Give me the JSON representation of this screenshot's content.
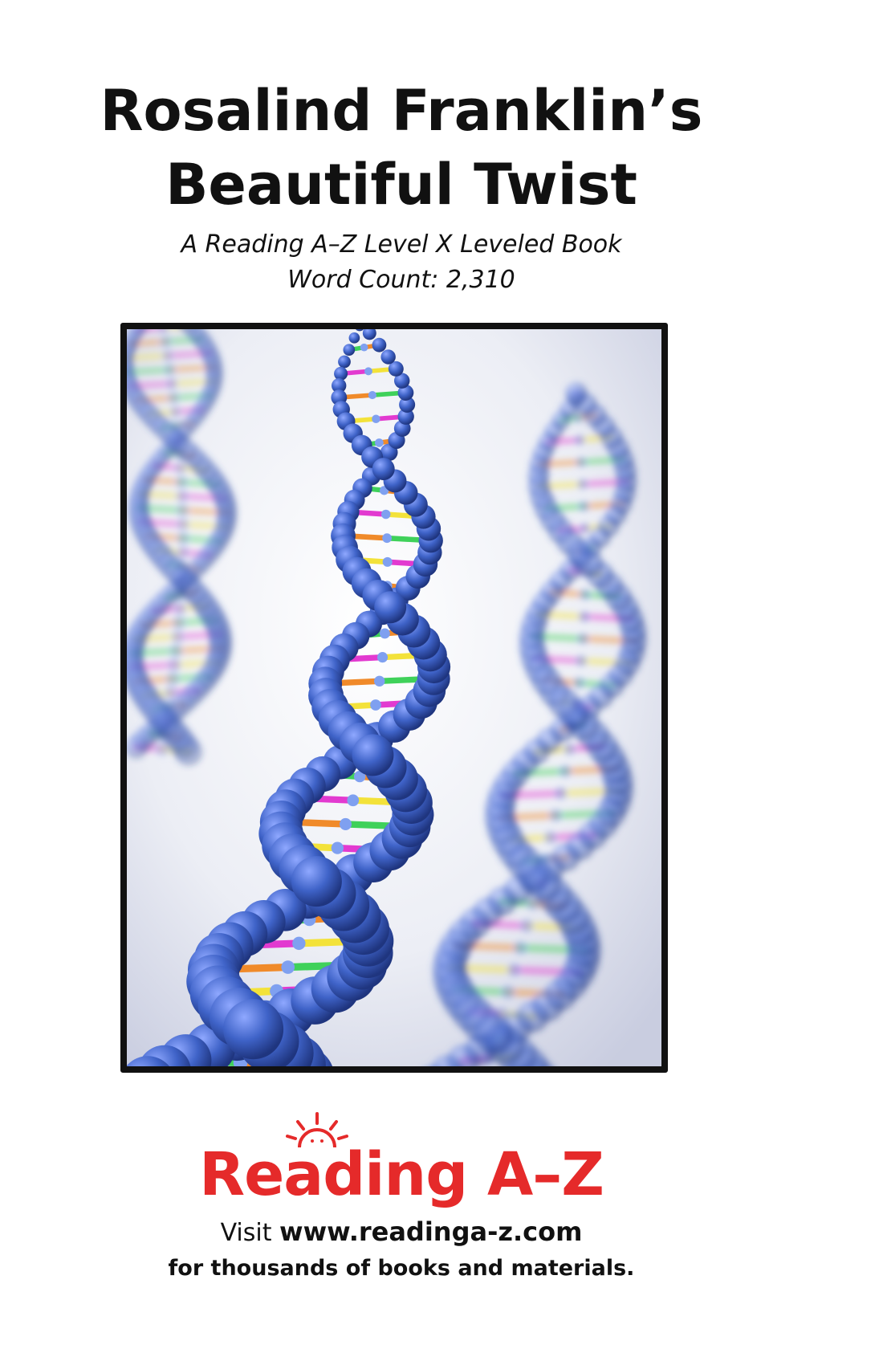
{
  "book": {
    "title_line1": "Rosalind Franklin’s",
    "title_line2": "Beautiful Twist",
    "series_line": "A Reading A–Z Level X Leveled Book",
    "word_count": "Word Count: 2,310"
  },
  "cover_image": {
    "subject": "dna-double-helix-illustration",
    "colors": {
      "backbone": "#3f63c8",
      "background": "#e6e8f0",
      "base_pairs": [
        "#e23ad0",
        "#f08a2a",
        "#f3e23a",
        "#3fd15a"
      ]
    }
  },
  "publisher": {
    "logo_text": "Reading A–Z",
    "logo_color": "#e52a2a",
    "visit_prefix": "Visit",
    "url": "www.readinga-z.com",
    "tagline": "for thousands of books and materials."
  }
}
